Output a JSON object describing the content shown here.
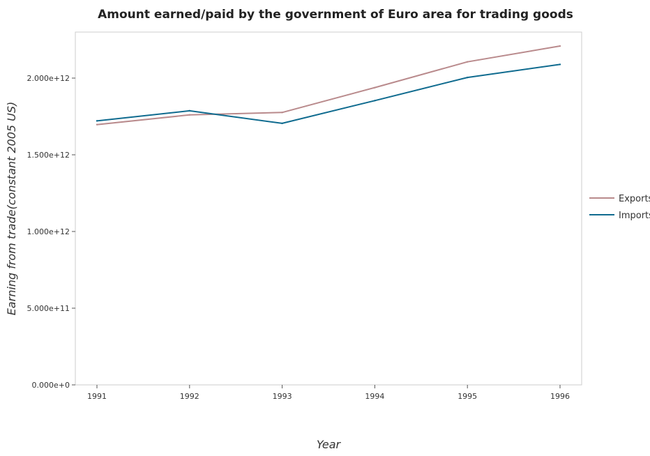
{
  "chart_data": {
    "type": "line",
    "title": "Amount earned/paid by the government of Euro area for trading goods",
    "xlabel": "Year",
    "ylabel": "Earning from trade(constant 2005 US)",
    "categories": [
      "1991",
      "1992",
      "1993",
      "1994",
      "1995",
      "1996"
    ],
    "ylim": [
      0,
      2300000000000
    ],
    "yticks": [
      {
        "value": 0,
        "label": "0.000e+0"
      },
      {
        "value": 500000000000,
        "label": "5.000e+11"
      },
      {
        "value": 1000000000000,
        "label": "1.000e+12"
      },
      {
        "value": 1500000000000,
        "label": "1.500e+12"
      },
      {
        "value": 2000000000000,
        "label": "2.000e+12"
      }
    ],
    "series": [
      {
        "name": "Exports",
        "color": "#b98a8c",
        "values": [
          1697000000000,
          1760000000000,
          1776000000000,
          1938000000000,
          2106000000000,
          2209000000000
        ]
      },
      {
        "name": "Imports",
        "color": "#0f6b8f",
        "values": [
          1721000000000,
          1787000000000,
          1705000000000,
          1853000000000,
          2004000000000,
          2089000000000
        ]
      }
    ],
    "legend_position": "right",
    "grid": false
  }
}
